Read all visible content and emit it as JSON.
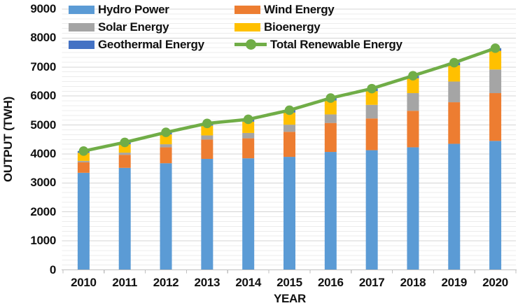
{
  "chart_data": {
    "type": "bar",
    "subtype": "stacked-bars-with-total-line",
    "title": "",
    "xlabel": "YEAR",
    "ylabel": "OUTPUT (TWH)",
    "categories": [
      "2010",
      "2011",
      "2012",
      "2013",
      "2014",
      "2015",
      "2016",
      "2017",
      "2018",
      "2019",
      "2020"
    ],
    "ylim": [
      0,
      9000
    ],
    "ytick_step": 1000,
    "yticks": [
      0,
      1000,
      2000,
      3000,
      4000,
      5000,
      6000,
      7000,
      8000,
      9000
    ],
    "minor_grid_divisions": 6,
    "grid": true,
    "legend_position": "top-left",
    "series": [
      {
        "name": "Hydro Power",
        "role": "bar",
        "color": "#5B9BD5",
        "values": [
          3350,
          3520,
          3680,
          3830,
          3850,
          3900,
          4070,
          4130,
          4230,
          4350,
          4450
        ]
      },
      {
        "name": "Wind Energy",
        "role": "bar",
        "color": "#ED7D31",
        "values": [
          360,
          450,
          550,
          665,
          690,
          865,
          1000,
          1095,
          1260,
          1435,
          1650
        ]
      },
      {
        "name": "Solar Energy",
        "role": "bar",
        "color": "#A5A5A5",
        "values": [
          50,
          75,
          105,
          145,
          185,
          245,
          295,
          470,
          610,
          715,
          815
        ]
      },
      {
        "name": "Bioenergy",
        "role": "bar",
        "color": "#FFC000",
        "values": [
          280,
          290,
          340,
          340,
          390,
          420,
          480,
          475,
          515,
          560,
          645
        ]
      },
      {
        "name": "Geothermal Energy",
        "role": "bar",
        "color": "#4472C4",
        "values": [
          60,
          65,
          70,
          75,
          80,
          80,
          85,
          85,
          85,
          90,
          90
        ]
      },
      {
        "name": "Total Renewable Energy",
        "role": "line",
        "color": "#70AD47",
        "values": [
          4100,
          4400,
          4745,
          5055,
          5195,
          5510,
          5930,
          6255,
          6700,
          7150,
          7650
        ]
      }
    ],
    "colors": {
      "gridline_major": "#D4D4D4",
      "gridline_minor": "#ECECEC",
      "axis": "#BFBFBF",
      "text": "#111111",
      "background": "#FFFFFF"
    }
  }
}
